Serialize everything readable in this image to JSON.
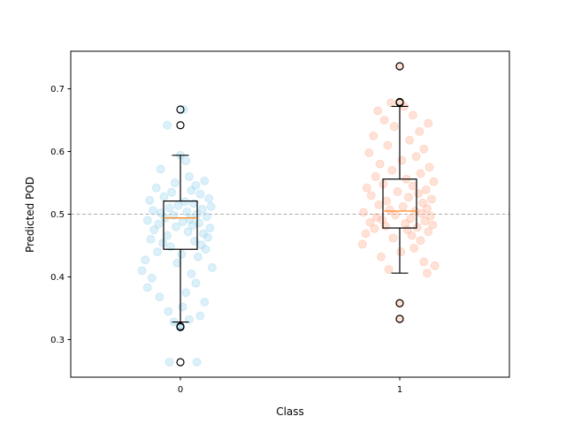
{
  "chart_data": {
    "type": "box",
    "xlabel": "Class",
    "ylabel": "Predicted POD",
    "categories": [
      "0",
      "1"
    ],
    "ylim": [
      0.24,
      0.76
    ],
    "yticks": [
      "0.3",
      "0.4",
      "0.5",
      "0.6",
      "0.7"
    ],
    "yticks_values": [
      0.3,
      0.4,
      0.5,
      0.6,
      0.7
    ],
    "reference_line": 0.5,
    "grid": false,
    "colors": {
      "class0_points": "#87CEEB",
      "class1_points": "#FFA07A",
      "median": "#FF7F0E",
      "box": "#000000",
      "reference": "#b0b0b0"
    },
    "boxes": [
      {
        "category": "0",
        "q1": 0.444,
        "median": 0.494,
        "q3": 0.521,
        "whisker_low": 0.328,
        "whisker_high": 0.594,
        "fliers": [
          0.667,
          0.642,
          0.321,
          0.32,
          0.264
        ]
      },
      {
        "category": "1",
        "q1": 0.478,
        "median": 0.505,
        "q3": 0.556,
        "whisker_low": 0.406,
        "whisker_high": 0.672,
        "fliers": [
          0.736,
          0.679,
          0.678,
          0.358,
          0.333
        ]
      }
    ],
    "points": [
      {
        "category": "0",
        "values": [
          0.667,
          0.642,
          0.594,
          0.585,
          0.572,
          0.56,
          0.553,
          0.55,
          0.546,
          0.542,
          0.538,
          0.535,
          0.532,
          0.528,
          0.525,
          0.522,
          0.52,
          0.517,
          0.514,
          0.512,
          0.51,
          0.508,
          0.506,
          0.504,
          0.502,
          0.5,
          0.498,
          0.496,
          0.494,
          0.492,
          0.49,
          0.488,
          0.486,
          0.484,
          0.482,
          0.48,
          0.478,
          0.475,
          0.472,
          0.469,
          0.466,
          0.463,
          0.46,
          0.457,
          0.454,
          0.451,
          0.448,
          0.444,
          0.44,
          0.436,
          0.432,
          0.427,
          0.422,
          0.415,
          0.41,
          0.405,
          0.398,
          0.39,
          0.383,
          0.375,
          0.368,
          0.36,
          0.352,
          0.345,
          0.338,
          0.332,
          0.328,
          0.321,
          0.32,
          0.264,
          0.264
        ],
        "offsets": [
          0.03,
          -0.12,
          0.0,
          0.05,
          -0.18,
          0.08,
          0.22,
          -0.05,
          0.14,
          -0.22,
          0.1,
          -0.08,
          0.18,
          -0.15,
          0.26,
          -0.28,
          0.04,
          0.12,
          -0.02,
          0.28,
          -0.1,
          0.2,
          -0.25,
          0.06,
          -0.18,
          0.15,
          -0.06,
          0.24,
          -0.14,
          0.09,
          -0.3,
          0.02,
          0.17,
          -0.2,
          0.11,
          -0.04,
          0.27,
          -0.24,
          0.07,
          0.21,
          -0.12,
          0.25,
          -0.27,
          0.13,
          -0.16,
          0.19,
          -0.09,
          0.23,
          -0.21,
          0.01,
          0.16,
          -0.32,
          -0.03,
          0.29,
          -0.35,
          0.1,
          -0.26,
          0.14,
          -0.3,
          0.05,
          -0.19,
          0.22,
          0.02,
          -0.11,
          0.18,
          0.08,
          -0.06,
          0.0,
          0.0,
          -0.1,
          0.15
        ]
      },
      {
        "category": "1",
        "values": [
          0.736,
          0.679,
          0.678,
          0.672,
          0.665,
          0.658,
          0.65,
          0.645,
          0.64,
          0.632,
          0.625,
          0.618,
          0.61,
          0.604,
          0.598,
          0.592,
          0.586,
          0.58,
          0.575,
          0.57,
          0.565,
          0.56,
          0.556,
          0.552,
          0.548,
          0.545,
          0.542,
          0.539,
          0.536,
          0.533,
          0.53,
          0.527,
          0.524,
          0.521,
          0.518,
          0.515,
          0.512,
          0.509,
          0.507,
          0.505,
          0.503,
          0.501,
          0.499,
          0.497,
          0.495,
          0.493,
          0.491,
          0.489,
          0.487,
          0.485,
          0.483,
          0.481,
          0.479,
          0.477,
          0.475,
          0.472,
          0.469,
          0.466,
          0.462,
          0.458,
          0.452,
          0.446,
          0.44,
          0.432,
          0.424,
          0.418,
          0.412,
          0.406,
          0.358,
          0.333
        ],
        "offsets": [
          0.0,
          0.0,
          -0.08,
          0.04,
          -0.2,
          0.12,
          -0.14,
          0.26,
          -0.05,
          0.18,
          -0.24,
          0.09,
          -0.11,
          0.22,
          -0.28,
          0.15,
          0.02,
          -0.18,
          0.27,
          -0.07,
          0.19,
          -0.22,
          0.06,
          0.31,
          -0.15,
          0.12,
          -0.3,
          0.24,
          -0.02,
          0.17,
          -0.26,
          0.08,
          0.29,
          -0.12,
          0.21,
          -0.19,
          0.03,
          0.25,
          -0.09,
          0.14,
          -0.33,
          0.2,
          -0.04,
          0.28,
          -0.21,
          0.1,
          -0.16,
          0.23,
          -0.27,
          0.05,
          0.3,
          -0.13,
          0.16,
          -0.23,
          0.07,
          0.26,
          -0.31,
          0.11,
          -0.06,
          0.19,
          -0.34,
          0.13,
          0.01,
          -0.17,
          0.22,
          0.32,
          -0.1,
          0.25,
          0.0,
          0.0
        ]
      }
    ]
  }
}
